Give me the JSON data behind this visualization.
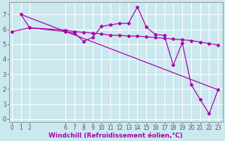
{
  "xlabel": "Windchill (Refroidissement éolien,°C)",
  "bg_color": "#cbe8ef",
  "line_color": "#aa00aa",
  "grid_color": "#ffffff",
  "x_ticks": [
    0,
    1,
    2,
    6,
    7,
    8,
    9,
    10,
    11,
    12,
    13,
    14,
    15,
    16,
    17,
    18,
    19,
    20,
    21,
    22,
    23
  ],
  "y_ticks": [
    0,
    1,
    2,
    3,
    4,
    5,
    6,
    7
  ],
  "ylim": [
    -0.2,
    7.8
  ],
  "xlim": [
    -0.3,
    23.5
  ],
  "series1_x": [
    1,
    2,
    6,
    7,
    8,
    9,
    10,
    11,
    12,
    13,
    14,
    15,
    16,
    17,
    18,
    19,
    20,
    21,
    22,
    23
  ],
  "series1_y": [
    7.0,
    6.1,
    5.85,
    5.75,
    5.2,
    5.45,
    6.2,
    6.3,
    6.4,
    6.4,
    7.5,
    6.15,
    5.65,
    5.6,
    3.6,
    5.1,
    2.3,
    1.3,
    0.35,
    1.95
  ],
  "series2_x": [
    0,
    2,
    6,
    7,
    8,
    9,
    10,
    11,
    12,
    13,
    14,
    15,
    16,
    17,
    18,
    19,
    20,
    21,
    22,
    23
  ],
  "series2_y": [
    5.85,
    6.1,
    5.95,
    5.85,
    5.8,
    5.75,
    5.7,
    5.6,
    5.6,
    5.55,
    5.55,
    5.5,
    5.45,
    5.4,
    5.35,
    5.3,
    5.25,
    5.15,
    5.05,
    4.95
  ],
  "series3_x": [
    1,
    23
  ],
  "series3_y": [
    7.0,
    1.95
  ],
  "xlabel_fontsize": 6.5,
  "tick_fontsize": 5.5
}
